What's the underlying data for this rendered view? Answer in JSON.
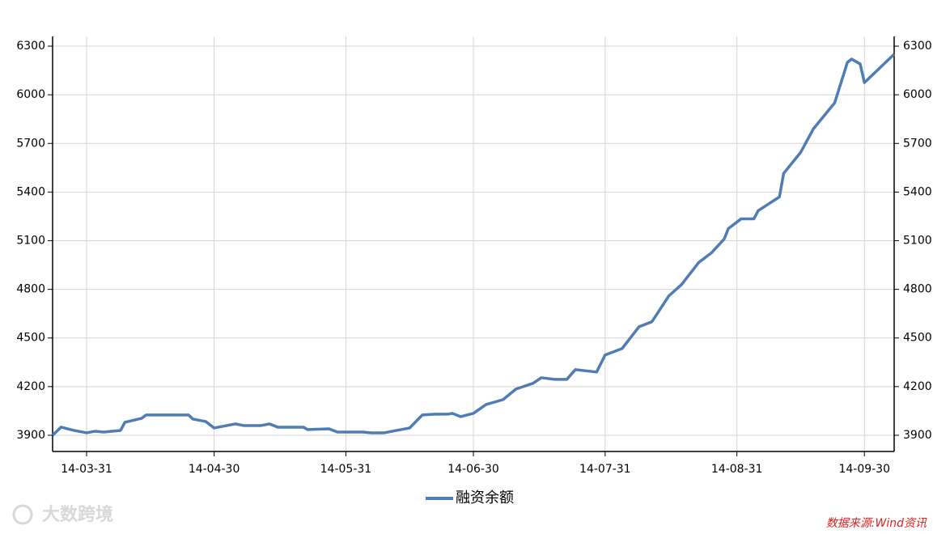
{
  "chart_data": {
    "type": "line",
    "x": [
      "14-03-23",
      "14-03-25",
      "14-03-28",
      "14-03-31",
      "14-04-02",
      "14-04-04",
      "14-04-08",
      "14-04-09",
      "14-04-13",
      "14-04-14",
      "14-04-18",
      "14-04-24",
      "14-04-25",
      "14-04-28",
      "14-04-30",
      "14-05-05",
      "14-05-07",
      "14-05-11",
      "14-05-13",
      "14-05-15",
      "14-05-19",
      "14-05-21",
      "14-05-22",
      "14-05-27",
      "14-05-29",
      "14-05-31",
      "14-06-04",
      "14-06-06",
      "14-06-09",
      "14-06-12",
      "14-06-15",
      "14-06-18",
      "14-06-21",
      "14-06-24",
      "14-06-25",
      "14-06-27",
      "14-06-30",
      "14-07-03",
      "14-07-07",
      "14-07-10",
      "14-07-14",
      "14-07-16",
      "14-07-19",
      "14-07-22",
      "14-07-24",
      "14-07-29",
      "14-07-31",
      "14-08-04",
      "14-08-08",
      "14-08-11",
      "14-08-15",
      "14-08-18",
      "14-08-22",
      "14-08-25",
      "14-08-28",
      "14-08-29",
      "14-09-01",
      "14-09-04",
      "14-09-05",
      "14-09-10",
      "14-09-11",
      "14-09-15",
      "14-09-18",
      "14-09-23",
      "14-09-26",
      "14-09-27",
      "14-09-29",
      "14-09-30",
      "14-10-07"
    ],
    "series": [
      {
        "name": "融资余额",
        "color": "#4f7db3",
        "values": [
          3900,
          3950,
          3930,
          3915,
          3925,
          3920,
          3930,
          3980,
          4005,
          4025,
          4025,
          4025,
          4000,
          3985,
          3945,
          3970,
          3960,
          3960,
          3970,
          3950,
          3950,
          3950,
          3935,
          3940,
          3920,
          3920,
          3920,
          3915,
          3915,
          3930,
          3945,
          4025,
          4030,
          4030,
          4035,
          4015,
          4035,
          4090,
          4120,
          4185,
          4220,
          4255,
          4245,
          4245,
          4305,
          4290,
          4395,
          4435,
          4570,
          4600,
          4760,
          4830,
          4965,
          5025,
          5110,
          5175,
          5235,
          5235,
          5285,
          5370,
          5515,
          5645,
          5790,
          5950,
          6200,
          6220,
          6190,
          6075,
          6250
        ]
      }
    ],
    "xlim": [
      "14-03-23",
      "14-10-07"
    ],
    "xticks": [
      "14-03-31",
      "14-04-30",
      "14-05-31",
      "14-06-30",
      "14-07-31",
      "14-08-31",
      "14-09-30"
    ],
    "ylim": [
      3800,
      6360
    ],
    "yticks": [
      3900,
      4200,
      4500,
      4800,
      5100,
      5400,
      5700,
      6000,
      6300
    ],
    "y2lim": [
      3800,
      6360
    ],
    "y2ticks": [
      3900,
      4200,
      4500,
      4800,
      5100,
      5400,
      5700,
      6000,
      6300
    ],
    "grid": true,
    "annotations": [
      "大数跨境",
      "数据来源:Wind资讯"
    ]
  }
}
